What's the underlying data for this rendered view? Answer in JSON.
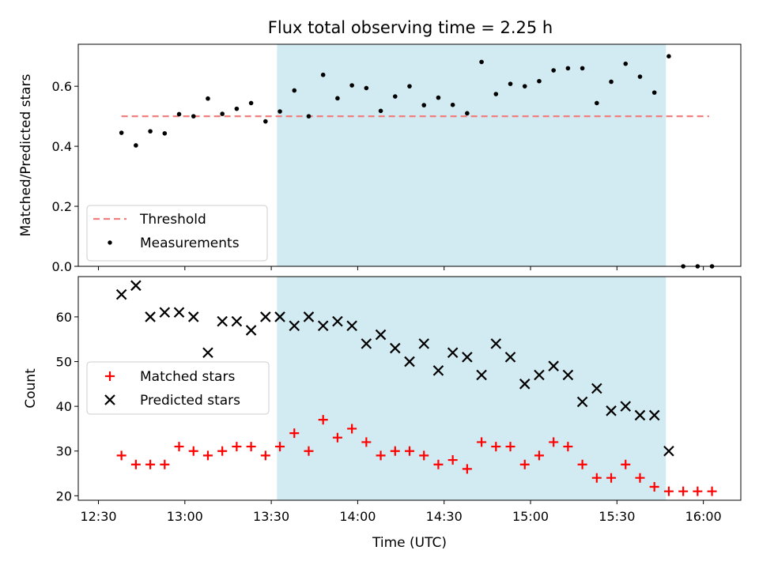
{
  "chart_data": {
    "title": "Flux total observing time = 2.25 h",
    "xlabel": "Time (UTC)",
    "x_ticks": [
      "12:30",
      "13:00",
      "13:30",
      "14:00",
      "14:30",
      "15:00",
      "15:30",
      "16:00"
    ],
    "xlim": [
      "12:23",
      "16:13"
    ],
    "shaded_region": {
      "start": "13:32",
      "end": "15:47",
      "color": "#add8e6"
    },
    "panels": [
      {
        "type": "scatter",
        "ylabel": "Matched/Predicted stars",
        "ylim": [
          0,
          0.74
        ],
        "y_ticks": [
          "0.0",
          "0.2",
          "0.4",
          "0.6"
        ],
        "legend_position": "lower-left",
        "threshold": {
          "name": "Threshold",
          "value": 0.5,
          "x_start": "12:38",
          "x_end": "16:02",
          "color": "#f08080",
          "style": "dashed"
        },
        "series": [
          {
            "name": "Measurements",
            "marker": "dot",
            "color": "#000000",
            "x": [
              "12:38",
              "12:43",
              "12:48",
              "12:53",
              "12:58",
              "13:03",
              "13:08",
              "13:13",
              "13:18",
              "13:23",
              "13:28",
              "13:33",
              "13:38",
              "13:43",
              "13:48",
              "13:53",
              "13:58",
              "14:03",
              "14:08",
              "14:13",
              "14:18",
              "14:23",
              "14:28",
              "14:33",
              "14:38",
              "14:43",
              "14:48",
              "14:53",
              "14:58",
              "15:03",
              "15:08",
              "15:13",
              "15:18",
              "15:23",
              "15:28",
              "15:33",
              "15:38",
              "15:43",
              "15:48",
              "15:53",
              "15:58",
              "16:03"
            ],
            "y": [
              0.445,
              0.403,
              0.45,
              0.443,
              0.507,
              0.5,
              0.559,
              0.508,
              0.525,
              0.544,
              0.483,
              0.516,
              0.586,
              0.5,
              0.638,
              0.56,
              0.603,
              0.594,
              0.518,
              0.566,
              0.6,
              0.537,
              0.562,
              0.538,
              0.51,
              0.681,
              0.574,
              0.608,
              0.6,
              0.617,
              0.653,
              0.66,
              0.66,
              0.544,
              0.615,
              0.675,
              0.632,
              0.579,
              0.7,
              0.0,
              0.0,
              0.0
            ]
          }
        ]
      },
      {
        "type": "scatter",
        "ylabel": "Count",
        "ylim": [
          19,
          69
        ],
        "y_ticks": [
          "20",
          "30",
          "40",
          "50",
          "60"
        ],
        "legend_position": "center-left",
        "series": [
          {
            "name": "Matched stars",
            "marker": "plus",
            "color": "#ff0000",
            "x": [
              "12:38",
              "12:43",
              "12:48",
              "12:53",
              "12:58",
              "13:03",
              "13:08",
              "13:13",
              "13:18",
              "13:23",
              "13:28",
              "13:33",
              "13:38",
              "13:43",
              "13:48",
              "13:53",
              "13:58",
              "14:03",
              "14:08",
              "14:13",
              "14:18",
              "14:23",
              "14:28",
              "14:33",
              "14:38",
              "14:43",
              "14:48",
              "14:53",
              "14:58",
              "15:03",
              "15:08",
              "15:13",
              "15:18",
              "15:23",
              "15:28",
              "15:33",
              "15:38",
              "15:43",
              "15:48",
              "15:53",
              "15:58",
              "16:03"
            ],
            "y": [
              29,
              27,
              27,
              27,
              31,
              30,
              29,
              30,
              31,
              31,
              29,
              31,
              34,
              30,
              37,
              33,
              35,
              32,
              29,
              30,
              30,
              29,
              27,
              28,
              26,
              32,
              31,
              31,
              27,
              29,
              32,
              31,
              27,
              24,
              24,
              27,
              24,
              22,
              21,
              21,
              21,
              21
            ]
          },
          {
            "name": "Predicted stars",
            "marker": "x",
            "color": "#000000",
            "x": [
              "12:38",
              "12:43",
              "12:48",
              "12:53",
              "12:58",
              "13:03",
              "13:08",
              "13:13",
              "13:18",
              "13:23",
              "13:28",
              "13:33",
              "13:38",
              "13:43",
              "13:48",
              "13:53",
              "13:58",
              "14:03",
              "14:08",
              "14:13",
              "14:18",
              "14:23",
              "14:28",
              "14:33",
              "14:38",
              "14:43",
              "14:48",
              "14:53",
              "14:58",
              "15:03",
              "15:08",
              "15:13",
              "15:18",
              "15:23",
              "15:28",
              "15:33",
              "15:38",
              "15:43",
              "15:48"
            ],
            "y": [
              65,
              67,
              60,
              61,
              61,
              60,
              52,
              59,
              59,
              57,
              60,
              60,
              58,
              60,
              58,
              59,
              58,
              54,
              56,
              53,
              50,
              54,
              48,
              52,
              51,
              47,
              54,
              51,
              45,
              47,
              49,
              47,
              41,
              44,
              39,
              40,
              38,
              38,
              30
            ]
          }
        ]
      }
    ]
  }
}
